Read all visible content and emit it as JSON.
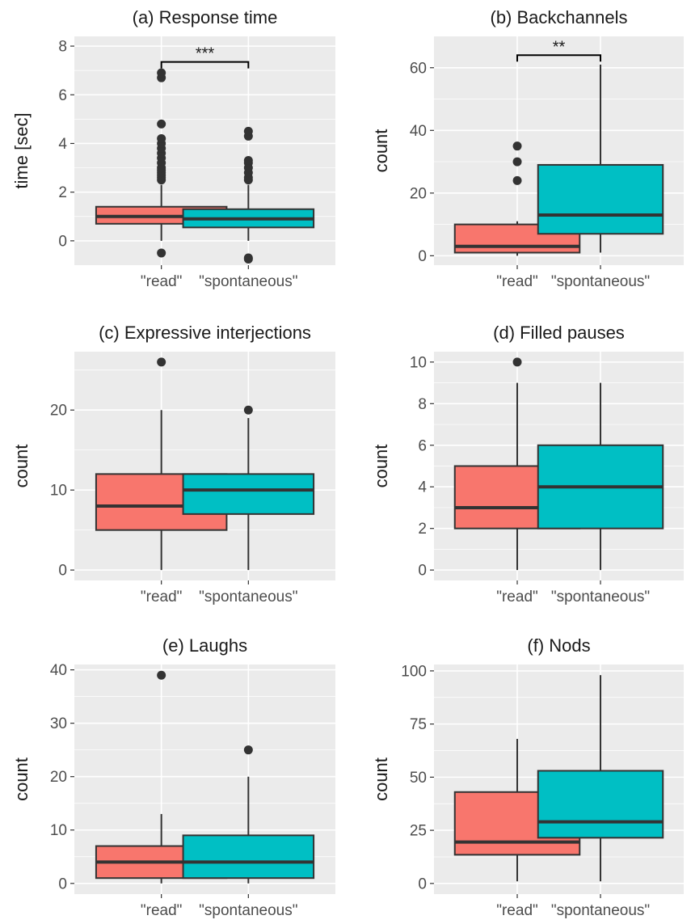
{
  "colors": {
    "read": "#F8766D",
    "spontaneous": "#00BFC4",
    "panel_bg": "#EBEBEB",
    "grid": "#FFFFFF",
    "ink": "#333333"
  },
  "chart_data": [
    {
      "type": "boxplot",
      "title": "(a) Response time",
      "ylabel": "time [sec]",
      "categories": [
        "\"read\"",
        "\"spontaneous\""
      ],
      "ylim": [
        -1,
        8.4
      ],
      "yticks": [
        0,
        2,
        4,
        6,
        8
      ],
      "boxes": [
        {
          "q1": 0.7,
          "median": 1.0,
          "q3": 1.4,
          "whisker_low": 0.0,
          "whisker_high": 2.3,
          "outliers": [
            -0.5,
            2.5,
            2.6,
            2.7,
            2.8,
            2.9,
            3.0,
            3.2,
            3.4,
            3.6,
            3.8,
            4.0,
            4.2,
            4.8,
            6.7,
            6.9
          ]
        },
        {
          "q1": 0.55,
          "median": 0.9,
          "q3": 1.3,
          "whisker_low": 0.0,
          "whisker_high": 2.3,
          "outliers": [
            -0.7,
            -0.75,
            2.5,
            2.6,
            2.8,
            3.0,
            3.2,
            3.3,
            4.3,
            4.5
          ]
        }
      ],
      "significance": {
        "label": "***",
        "y": 7.35
      }
    },
    {
      "type": "boxplot",
      "title": "(b) Backchannels",
      "ylabel": "count",
      "categories": [
        "\"read\"",
        "\"spontaneous\""
      ],
      "ylim": [
        -3,
        70
      ],
      "yticks": [
        0,
        20,
        40,
        60
      ],
      "boxes": [
        {
          "q1": 1,
          "median": 3,
          "q3": 10,
          "whisker_low": 0,
          "whisker_high": 11,
          "outliers": [
            24,
            30,
            35
          ]
        },
        {
          "q1": 7,
          "median": 13,
          "q3": 29,
          "whisker_low": 1,
          "whisker_high": 61,
          "outliers": []
        }
      ],
      "significance": {
        "label": "**",
        "y": 64
      }
    },
    {
      "type": "boxplot",
      "title": "(c) Expressive interjections",
      "ylabel": "count",
      "categories": [
        "\"read\"",
        "\"spontaneous\""
      ],
      "ylim": [
        -1.3,
        27.3
      ],
      "yticks": [
        0,
        10,
        20
      ],
      "boxes": [
        {
          "q1": 5,
          "median": 8,
          "q3": 12,
          "whisker_low": 0,
          "whisker_high": 20,
          "outliers": [
            26
          ]
        },
        {
          "q1": 7,
          "median": 10,
          "q3": 12,
          "whisker_low": 0,
          "whisker_high": 19,
          "outliers": [
            20
          ]
        }
      ],
      "significance": null
    },
    {
      "type": "boxplot",
      "title": "(d) Filled pauses",
      "ylabel": "count",
      "categories": [
        "\"read\"",
        "\"spontaneous\""
      ],
      "ylim": [
        -0.5,
        10.5
      ],
      "yticks": [
        0,
        2,
        4,
        6,
        8,
        10
      ],
      "boxes": [
        {
          "q1": 2,
          "median": 3,
          "q3": 5,
          "whisker_low": 0,
          "whisker_high": 9,
          "outliers": [
            10
          ]
        },
        {
          "q1": 2,
          "median": 4,
          "q3": 6,
          "whisker_low": 0,
          "whisker_high": 9,
          "outliers": []
        }
      ],
      "significance": null
    },
    {
      "type": "boxplot",
      "title": "(e) Laughs",
      "ylabel": "count",
      "categories": [
        "\"read\"",
        "\"spontaneous\""
      ],
      "ylim": [
        -2,
        41
      ],
      "yticks": [
        0,
        10,
        20,
        30,
        40
      ],
      "boxes": [
        {
          "q1": 1,
          "median": 4,
          "q3": 7,
          "whisker_low": 0,
          "whisker_high": 13,
          "outliers": [
            39
          ]
        },
        {
          "q1": 1,
          "median": 4,
          "q3": 9,
          "whisker_low": 0,
          "whisker_high": 20,
          "outliers": [
            25
          ]
        }
      ],
      "significance": null
    },
    {
      "type": "boxplot",
      "title": "(f) Nods",
      "ylabel": "count",
      "categories": [
        "\"read\"",
        "\"spontaneous\""
      ],
      "ylim": [
        -5,
        103
      ],
      "yticks": [
        0,
        25,
        50,
        75,
        100
      ],
      "boxes": [
        {
          "q1": 13.5,
          "median": 19.5,
          "q3": 43,
          "whisker_low": 1,
          "whisker_high": 68,
          "outliers": []
        },
        {
          "q1": 21.5,
          "median": 29,
          "q3": 53,
          "whisker_low": 1,
          "whisker_high": 98,
          "outliers": []
        }
      ],
      "significance": null
    }
  ]
}
